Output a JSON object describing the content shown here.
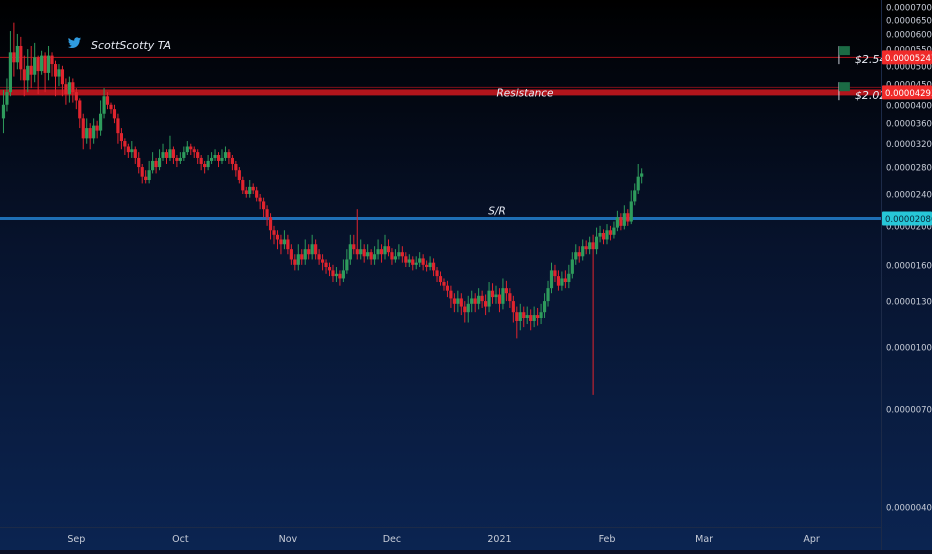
{
  "watermark": {
    "icon": "twitter-bird-icon",
    "author": "ScottScotty TA"
  },
  "colors": {
    "up": "#2e9b5c",
    "down": "#e0242e",
    "resistance": "#b2151c",
    "price_tag_red": "#f02a2a",
    "sr_line": "#1e6fb5",
    "sr_tag": "#27c7d8",
    "flag": "#1b6b45"
  },
  "chart_data": {
    "type": "candlestick",
    "y_scale": "log",
    "ylim": [
      3.5e-07,
      7.3e-06
    ],
    "y_ticks": [
      "0.00007000",
      "0.00006500",
      "0.00006000",
      "0.00005500",
      "0.00005000",
      "0.00004500",
      "0.00004000",
      "0.00003600",
      "0.00003200",
      "0.00002800",
      "0.00002400",
      "0.00002000",
      "0.00001600",
      "0.00001300",
      "0.00001000",
      "0.00000700",
      "0.00000400"
    ],
    "y_tick_values": [
      7e-06,
      6.5e-06,
      6e-06,
      5.5e-06,
      5e-06,
      4.5e-06,
      4e-06,
      3.6e-06,
      3.2e-06,
      2.8e-06,
      2.4e-06,
      2e-06,
      1.6e-06,
      1.3e-06,
      1e-06,
      7e-07,
      4e-07
    ],
    "x_ticks": [
      "Sep",
      "Oct",
      "Nov",
      "Dec",
      "2021",
      "Feb",
      "Mar",
      "Apr"
    ],
    "x_range": [
      "2020-08-10",
      "2021-04-21"
    ],
    "x_tick_dates": [
      "2020-09-01",
      "2020-10-01",
      "2020-11-01",
      "2020-12-01",
      "2021-01-01",
      "2021-02-01",
      "2021-03-01",
      "2021-04-01"
    ],
    "horizontal_levels": [
      {
        "label": "Resistance",
        "price": 4.293e-06,
        "price_label": "0.00004293",
        "style": "thick-red"
      },
      {
        "label": "",
        "price": 5.247e-06,
        "price_label": "0.00005247",
        "style": "thin-red"
      },
      {
        "label": "S/R",
        "price": 2.086e-06,
        "price_label": "0.00002086",
        "style": "blue"
      }
    ],
    "flags": [
      {
        "label": "$2.54",
        "date": "2021-04-08",
        "price": 5.5e-06
      },
      {
        "label": "$2.02",
        "date": "2021-04-08",
        "price": 4.5e-06
      }
    ],
    "candles": [
      [
        "2020-08-11",
        3.7,
        4.0,
        4.35,
        3.4
      ],
      [
        "2020-08-12",
        4.0,
        4.3,
        4.65,
        3.85
      ],
      [
        "2020-08-13",
        4.3,
        5.4,
        6.1,
        4.2
      ],
      [
        "2020-08-14",
        5.4,
        5.1,
        6.4,
        4.7
      ],
      [
        "2020-08-15",
        5.1,
        5.6,
        6.0,
        4.9
      ],
      [
        "2020-08-16",
        5.6,
        4.9,
        5.9,
        4.6
      ],
      [
        "2020-08-17",
        4.9,
        4.6,
        5.3,
        4.2
      ],
      [
        "2020-08-18",
        4.6,
        5.0,
        5.5,
        4.3
      ],
      [
        "2020-08-19",
        5.0,
        4.75,
        5.6,
        4.4
      ],
      [
        "2020-08-20",
        4.75,
        5.25,
        5.7,
        4.55
      ],
      [
        "2020-08-21",
        5.25,
        4.85,
        5.3,
        4.25
      ],
      [
        "2020-08-22",
        4.85,
        5.3,
        5.45,
        4.75
      ],
      [
        "2020-08-23",
        5.3,
        4.8,
        5.4,
        4.3
      ],
      [
        "2020-08-24",
        4.8,
        5.3,
        5.6,
        4.6
      ],
      [
        "2020-08-25",
        5.3,
        5.05,
        5.4,
        4.7
      ],
      [
        "2020-08-26",
        5.05,
        4.7,
        5.15,
        4.2
      ],
      [
        "2020-08-27",
        4.7,
        4.9,
        5.05,
        4.45
      ],
      [
        "2020-08-28",
        4.9,
        4.5,
        5.0,
        4.2
      ],
      [
        "2020-08-29",
        4.5,
        4.25,
        4.65,
        4.0
      ],
      [
        "2020-08-30",
        4.25,
        4.55,
        4.7,
        4.05
      ],
      [
        "2020-08-31",
        4.55,
        4.3,
        4.65,
        4.05
      ],
      [
        "2020-09-01",
        4.3,
        4.1,
        4.4,
        3.9
      ],
      [
        "2020-09-02",
        4.1,
        3.7,
        4.15,
        3.5
      ],
      [
        "2020-09-03",
        3.7,
        3.3,
        3.8,
        3.1
      ],
      [
        "2020-09-04",
        3.3,
        3.5,
        3.7,
        3.2
      ],
      [
        "2020-09-05",
        3.5,
        3.3,
        3.6,
        3.1
      ],
      [
        "2020-09-06",
        3.3,
        3.55,
        3.7,
        3.2
      ],
      [
        "2020-09-07",
        3.55,
        3.45,
        3.65,
        3.3
      ],
      [
        "2020-09-08",
        3.45,
        3.8,
        4.1,
        3.35
      ],
      [
        "2020-09-09",
        3.8,
        4.2,
        4.4,
        3.7
      ],
      [
        "2020-09-10",
        4.2,
        4.0,
        4.3,
        3.9
      ],
      [
        "2020-09-11",
        4.0,
        3.9,
        4.05,
        3.8
      ],
      [
        "2020-09-12",
        3.9,
        3.7,
        4.0,
        3.6
      ],
      [
        "2020-09-13",
        3.7,
        3.4,
        3.8,
        3.2
      ],
      [
        "2020-09-14",
        3.4,
        3.25,
        3.5,
        3.1
      ],
      [
        "2020-09-15",
        3.25,
        3.15,
        3.3,
        3.0
      ],
      [
        "2020-09-16",
        3.15,
        3.05,
        3.2,
        2.95
      ],
      [
        "2020-09-17",
        3.05,
        3.1,
        3.25,
        2.95
      ],
      [
        "2020-09-18",
        3.1,
        2.95,
        3.15,
        2.85
      ],
      [
        "2020-09-19",
        2.95,
        2.8,
        3.05,
        2.7
      ],
      [
        "2020-09-20",
        2.8,
        2.65,
        2.85,
        2.55
      ],
      [
        "2020-09-21",
        2.65,
        2.6,
        2.75,
        2.55
      ],
      [
        "2020-09-22",
        2.6,
        2.75,
        2.9,
        2.55
      ],
      [
        "2020-09-23",
        2.75,
        2.9,
        3.05,
        2.7
      ],
      [
        "2020-09-24",
        2.9,
        2.8,
        2.95,
        2.7
      ],
      [
        "2020-09-25",
        2.8,
        2.95,
        3.1,
        2.75
      ],
      [
        "2020-09-26",
        2.95,
        3.05,
        3.2,
        2.9
      ],
      [
        "2020-09-27",
        3.05,
        2.95,
        3.1,
        2.85
      ],
      [
        "2020-09-28",
        2.95,
        3.1,
        3.35,
        2.9
      ],
      [
        "2020-09-29",
        3.1,
        2.95,
        3.15,
        2.85
      ],
      [
        "2020-09-30",
        2.95,
        2.9,
        3.0,
        2.8
      ],
      [
        "2020-10-01",
        2.9,
        2.95,
        3.05,
        2.85
      ],
      [
        "2020-10-02",
        2.95,
        3.05,
        3.15,
        2.9
      ],
      [
        "2020-10-03",
        3.05,
        3.15,
        3.25,
        3.0
      ],
      [
        "2020-10-04",
        3.15,
        3.1,
        3.2,
        3.0
      ],
      [
        "2020-10-05",
        3.1,
        3.05,
        3.15,
        2.95
      ],
      [
        "2020-10-06",
        3.05,
        2.95,
        3.1,
        2.85
      ],
      [
        "2020-10-07",
        2.95,
        2.85,
        3.0,
        2.75
      ],
      [
        "2020-10-08",
        2.85,
        2.8,
        2.9,
        2.7
      ],
      [
        "2020-10-09",
        2.8,
        2.9,
        3.0,
        2.75
      ],
      [
        "2020-10-10",
        2.9,
        2.95,
        3.05,
        2.85
      ],
      [
        "2020-10-11",
        2.95,
        3.0,
        3.1,
        2.9
      ],
      [
        "2020-10-12",
        3.0,
        2.9,
        3.05,
        2.8
      ],
      [
        "2020-10-13",
        2.9,
        2.95,
        3.1,
        2.85
      ],
      [
        "2020-10-14",
        2.95,
        3.05,
        3.15,
        2.9
      ],
      [
        "2020-10-15",
        3.05,
        2.95,
        3.1,
        2.85
      ],
      [
        "2020-10-16",
        2.95,
        2.85,
        3.0,
        2.75
      ],
      [
        "2020-10-17",
        2.85,
        2.75,
        2.9,
        2.65
      ],
      [
        "2020-10-18",
        2.75,
        2.6,
        2.8,
        2.55
      ],
      [
        "2020-10-19",
        2.6,
        2.45,
        2.65,
        2.4
      ],
      [
        "2020-10-20",
        2.45,
        2.4,
        2.5,
        2.35
      ],
      [
        "2020-10-21",
        2.4,
        2.5,
        2.6,
        2.35
      ],
      [
        "2020-10-22",
        2.5,
        2.45,
        2.55,
        2.4
      ],
      [
        "2020-10-23",
        2.45,
        2.35,
        2.5,
        2.3
      ],
      [
        "2020-10-24",
        2.35,
        2.3,
        2.4,
        2.2
      ],
      [
        "2020-10-25",
        2.3,
        2.2,
        2.35,
        2.1
      ],
      [
        "2020-10-26",
        2.2,
        2.1,
        2.25,
        2.0
      ],
      [
        "2020-10-27",
        2.1,
        1.95,
        2.15,
        1.85
      ],
      [
        "2020-10-28",
        1.95,
        1.9,
        2.0,
        1.8
      ],
      [
        "2020-10-29",
        1.9,
        1.85,
        1.95,
        1.75
      ],
      [
        "2020-10-30",
        1.85,
        1.8,
        1.9,
        1.7
      ],
      [
        "2020-10-31",
        1.8,
        1.85,
        1.95,
        1.75
      ],
      [
        "2020-11-01",
        1.85,
        1.75,
        1.9,
        1.7
      ],
      [
        "2020-11-02",
        1.75,
        1.65,
        1.8,
        1.6
      ],
      [
        "2020-11-03",
        1.65,
        1.6,
        1.7,
        1.55
      ],
      [
        "2020-11-04",
        1.6,
        1.7,
        1.8,
        1.55
      ],
      [
        "2020-11-05",
        1.7,
        1.65,
        1.75,
        1.6
      ],
      [
        "2020-11-06",
        1.65,
        1.75,
        1.85,
        1.6
      ],
      [
        "2020-11-07",
        1.75,
        1.7,
        1.8,
        1.65
      ],
      [
        "2020-11-08",
        1.7,
        1.8,
        1.9,
        1.65
      ],
      [
        "2020-11-09",
        1.8,
        1.7,
        1.85,
        1.65
      ],
      [
        "2020-11-10",
        1.7,
        1.65,
        1.75,
        1.6
      ],
      [
        "2020-11-11",
        1.65,
        1.62,
        1.7,
        1.55
      ],
      [
        "2020-11-12",
        1.62,
        1.58,
        1.65,
        1.52
      ],
      [
        "2020-11-13",
        1.58,
        1.55,
        1.62,
        1.5
      ],
      [
        "2020-11-14",
        1.55,
        1.5,
        1.6,
        1.45
      ],
      [
        "2020-11-15",
        1.5,
        1.52,
        1.58,
        1.45
      ],
      [
        "2020-11-16",
        1.52,
        1.48,
        1.55,
        1.42
      ],
      [
        "2020-11-17",
        1.48,
        1.55,
        1.65,
        1.45
      ],
      [
        "2020-11-18",
        1.55,
        1.65,
        1.75,
        1.52
      ],
      [
        "2020-11-19",
        1.65,
        1.8,
        1.9,
        1.6
      ],
      [
        "2020-11-20",
        1.8,
        1.75,
        1.9,
        1.7
      ],
      [
        "2020-11-21",
        1.75,
        1.7,
        2.2,
        1.65
      ],
      [
        "2020-11-22",
        1.7,
        1.75,
        1.85,
        1.65
      ],
      [
        "2020-11-23",
        1.75,
        1.68,
        1.8,
        1.62
      ],
      [
        "2020-11-24",
        1.68,
        1.72,
        1.8,
        1.65
      ],
      [
        "2020-11-25",
        1.72,
        1.65,
        1.75,
        1.6
      ],
      [
        "2020-11-26",
        1.65,
        1.7,
        1.78,
        1.6
      ],
      [
        "2020-11-27",
        1.7,
        1.75,
        1.85,
        1.65
      ],
      [
        "2020-11-28",
        1.75,
        1.7,
        1.8,
        1.62
      ],
      [
        "2020-11-29",
        1.7,
        1.78,
        1.9,
        1.65
      ],
      [
        "2020-11-30",
        1.78,
        1.72,
        1.85,
        1.68
      ],
      [
        "2020-12-01",
        1.72,
        1.65,
        1.76,
        1.6
      ],
      [
        "2020-12-02",
        1.65,
        1.68,
        1.75,
        1.62
      ],
      [
        "2020-12-03",
        1.68,
        1.72,
        1.8,
        1.65
      ],
      [
        "2020-12-04",
        1.72,
        1.68,
        1.78,
        1.62
      ],
      [
        "2020-12-05",
        1.68,
        1.62,
        1.72,
        1.58
      ],
      [
        "2020-12-06",
        1.62,
        1.65,
        1.7,
        1.58
      ],
      [
        "2020-12-07",
        1.65,
        1.6,
        1.68,
        1.55
      ],
      [
        "2020-12-08",
        1.6,
        1.62,
        1.68,
        1.56
      ],
      [
        "2020-12-09",
        1.62,
        1.66,
        1.72,
        1.58
      ],
      [
        "2020-12-10",
        1.66,
        1.6,
        1.7,
        1.55
      ],
      [
        "2020-12-11",
        1.6,
        1.58,
        1.64,
        1.54
      ],
      [
        "2020-12-12",
        1.58,
        1.62,
        1.68,
        1.55
      ],
      [
        "2020-12-13",
        1.62,
        1.55,
        1.66,
        1.5
      ],
      [
        "2020-12-14",
        1.55,
        1.5,
        1.58,
        1.45
      ],
      [
        "2020-12-15",
        1.5,
        1.45,
        1.54,
        1.42
      ],
      [
        "2020-12-16",
        1.45,
        1.42,
        1.48,
        1.38
      ],
      [
        "2020-12-17",
        1.42,
        1.38,
        1.46,
        1.33
      ],
      [
        "2020-12-18",
        1.38,
        1.32,
        1.42,
        1.25
      ],
      [
        "2020-12-19",
        1.32,
        1.28,
        1.36,
        1.22
      ],
      [
        "2020-12-20",
        1.28,
        1.32,
        1.38,
        1.22
      ],
      [
        "2020-12-21",
        1.32,
        1.26,
        1.36,
        1.2
      ],
      [
        "2020-12-22",
        1.26,
        1.22,
        1.3,
        1.15
      ],
      [
        "2020-12-23",
        1.22,
        1.28,
        1.34,
        1.15
      ],
      [
        "2020-12-24",
        1.28,
        1.32,
        1.38,
        1.22
      ],
      [
        "2020-12-25",
        1.32,
        1.28,
        1.36,
        1.22
      ],
      [
        "2020-12-26",
        1.28,
        1.34,
        1.4,
        1.24
      ],
      [
        "2020-12-27",
        1.34,
        1.3,
        1.38,
        1.25
      ],
      [
        "2020-12-28",
        1.3,
        1.26,
        1.35,
        1.2
      ],
      [
        "2020-12-29",
        1.26,
        1.38,
        1.45,
        1.22
      ],
      [
        "2020-12-30",
        1.38,
        1.33,
        1.44,
        1.28
      ],
      [
        "2020-12-31",
        1.33,
        1.35,
        1.42,
        1.28
      ],
      [
        "2021-01-01",
        1.35,
        1.28,
        1.4,
        1.22
      ],
      [
        "2021-01-02",
        1.28,
        1.4,
        1.48,
        1.24
      ],
      [
        "2021-01-03",
        1.4,
        1.36,
        1.46,
        1.3
      ],
      [
        "2021-01-04",
        1.36,
        1.3,
        1.4,
        1.25
      ],
      [
        "2021-01-05",
        1.3,
        1.22,
        1.34,
        1.15
      ],
      [
        "2021-01-06",
        1.22,
        1.16,
        1.26,
        1.05
      ],
      [
        "2021-01-07",
        1.16,
        1.22,
        1.28,
        1.1
      ],
      [
        "2021-01-08",
        1.22,
        1.18,
        1.26,
        1.12
      ],
      [
        "2021-01-09",
        1.18,
        1.2,
        1.26,
        1.14
      ],
      [
        "2021-01-10",
        1.2,
        1.16,
        1.24,
        1.1
      ],
      [
        "2021-01-11",
        1.16,
        1.2,
        1.26,
        1.12
      ],
      [
        "2021-01-12",
        1.2,
        1.18,
        1.25,
        1.13
      ],
      [
        "2021-01-13",
        1.18,
        1.22,
        1.28,
        1.14
      ],
      [
        "2021-01-14",
        1.22,
        1.3,
        1.36,
        1.18
      ],
      [
        "2021-01-15",
        1.3,
        1.4,
        1.46,
        1.26
      ],
      [
        "2021-01-16",
        1.4,
        1.55,
        1.62,
        1.36
      ],
      [
        "2021-01-17",
        1.55,
        1.5,
        1.6,
        1.45
      ],
      [
        "2021-01-18",
        1.5,
        1.42,
        1.55,
        1.38
      ],
      [
        "2021-01-19",
        1.42,
        1.48,
        1.54,
        1.38
      ],
      [
        "2021-01-20",
        1.48,
        1.45,
        1.55,
        1.4
      ],
      [
        "2021-01-21",
        1.45,
        1.52,
        1.6,
        1.4
      ],
      [
        "2021-01-22",
        1.52,
        1.65,
        1.72,
        1.48
      ],
      [
        "2021-01-23",
        1.65,
        1.72,
        1.8,
        1.6
      ],
      [
        "2021-01-24",
        1.72,
        1.68,
        1.78,
        1.62
      ],
      [
        "2021-01-25",
        1.68,
        1.78,
        1.85,
        1.64
      ],
      [
        "2021-01-26",
        1.78,
        1.75,
        1.84,
        1.7
      ],
      [
        "2021-01-27",
        1.75,
        1.82,
        1.88,
        1.7
      ],
      [
        "2021-01-28",
        1.82,
        1.75,
        1.9,
        0.76
      ],
      [
        "2021-01-29",
        1.75,
        1.88,
        1.98,
        1.7
      ],
      [
        "2021-01-30",
        1.88,
        1.92,
        2.0,
        1.82
      ],
      [
        "2021-01-31",
        1.92,
        1.85,
        1.96,
        1.8
      ],
      [
        "2021-02-01",
        1.85,
        1.95,
        2.02,
        1.8
      ],
      [
        "2021-02-02",
        1.95,
        1.9,
        2.0,
        1.84
      ],
      [
        "2021-02-03",
        1.9,
        1.98,
        2.05,
        1.86
      ],
      [
        "2021-02-04",
        1.98,
        2.1,
        2.18,
        1.94
      ],
      [
        "2021-02-05",
        2.1,
        2.0,
        2.15,
        1.95
      ],
      [
        "2021-02-06",
        2.0,
        2.15,
        2.25,
        1.96
      ],
      [
        "2021-02-07",
        2.15,
        2.05,
        2.2,
        2.0
      ],
      [
        "2021-02-08",
        2.05,
        2.3,
        2.45,
        2.02
      ],
      [
        "2021-02-09",
        2.3,
        2.45,
        2.55,
        2.25
      ],
      [
        "2021-02-10",
        2.45,
        2.65,
        2.85,
        2.4
      ],
      [
        "2021-02-11",
        2.65,
        2.7,
        2.78,
        2.55
      ]
    ]
  }
}
